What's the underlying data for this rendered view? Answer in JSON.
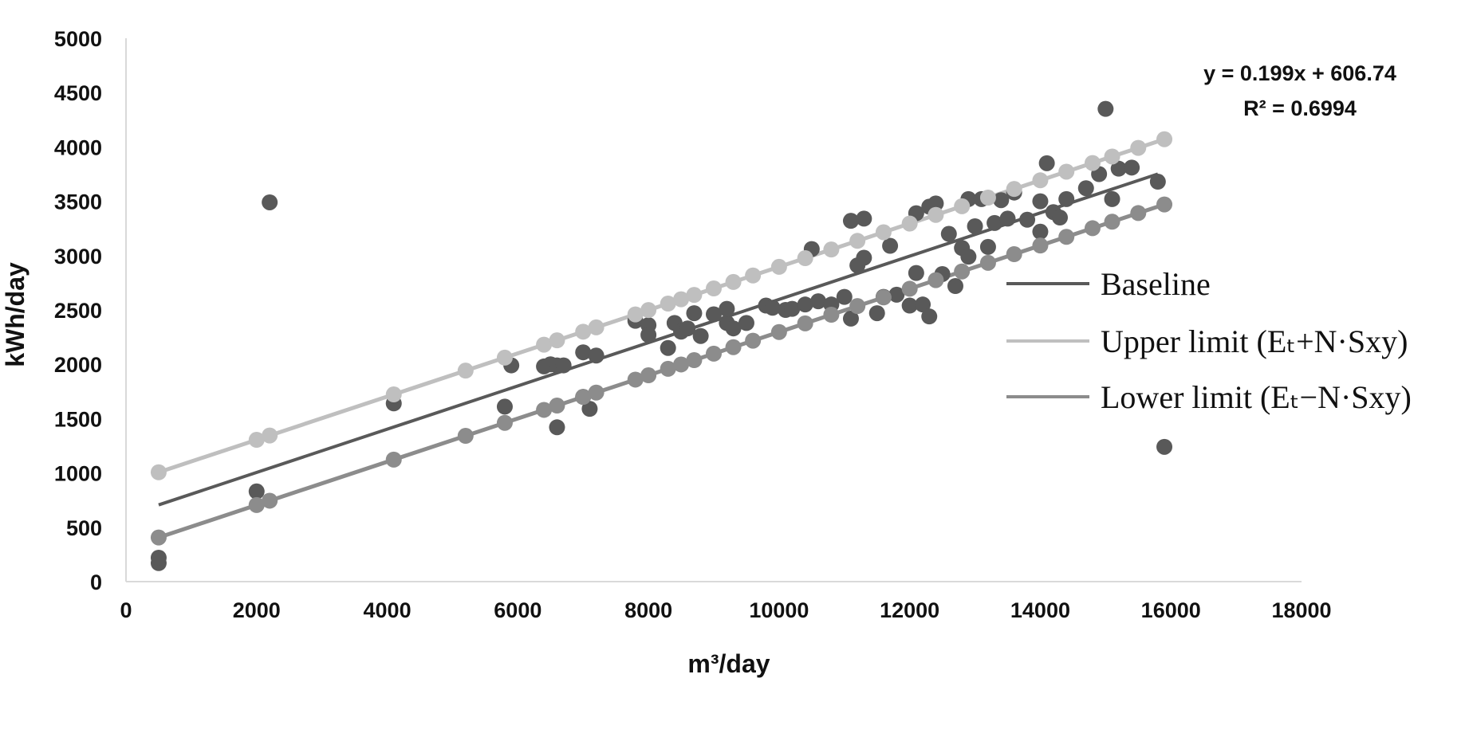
{
  "chart_data": {
    "type": "scatter",
    "xlabel": "m³/day",
    "ylabel": "kWh/day",
    "xlim": [
      0,
      18000
    ],
    "ylim": [
      0,
      5000
    ],
    "x_ticks": [
      "0",
      "2000",
      "4000",
      "6000",
      "8000",
      "10000",
      "12000",
      "14000",
      "16000",
      "18000"
    ],
    "y_ticks": [
      "0",
      "500",
      "1000",
      "1500",
      "2000",
      "2500",
      "3000",
      "3500",
      "4000",
      "4500",
      "5000"
    ],
    "trendline": {
      "equation": "y = 0.199x + 606.74",
      "r_squared": "R² = 0.6994",
      "slope": 0.199,
      "intercept": 606.74,
      "x_range": [
        500,
        15800
      ]
    },
    "upper_offset": 300,
    "lower_offset": -300,
    "legend_position": "right",
    "legend": [
      {
        "key": "baseline",
        "label": "Baseline",
        "color": "#595959"
      },
      {
        "key": "upper",
        "label": "Upper limit (Eₜ+N·Sxy)",
        "color": "#bfbfbf"
      },
      {
        "key": "lower",
        "label": "Lower limit (Eₜ−N·Sxy)",
        "color": "#8c8c8c"
      }
    ],
    "colors": {
      "observed": "#595959",
      "upper": "#bfbfbf",
      "lower": "#8c8c8c",
      "axis": "#d9d9d9"
    },
    "series": [
      {
        "key": "observed",
        "points": [
          [
            500,
            170
          ],
          [
            500,
            220
          ],
          [
            2000,
            830
          ],
          [
            2200,
            3490
          ],
          [
            4100,
            1640
          ],
          [
            5800,
            1610
          ],
          [
            5900,
            1990
          ],
          [
            6400,
            1980
          ],
          [
            6500,
            2000
          ],
          [
            6600,
            1990
          ],
          [
            6600,
            1420
          ],
          [
            6700,
            1990
          ],
          [
            7000,
            1700
          ],
          [
            7000,
            2110
          ],
          [
            7100,
            1590
          ],
          [
            7200,
            2080
          ],
          [
            7800,
            2400
          ],
          [
            8000,
            2360
          ],
          [
            8000,
            2270
          ],
          [
            8300,
            2150
          ],
          [
            8400,
            2380
          ],
          [
            8500,
            2300
          ],
          [
            8600,
            2330
          ],
          [
            8700,
            2470
          ],
          [
            8800,
            2260
          ],
          [
            9000,
            2460
          ],
          [
            9200,
            2380
          ],
          [
            9200,
            2510
          ],
          [
            9300,
            2330
          ],
          [
            9500,
            2380
          ],
          [
            9800,
            2540
          ],
          [
            9900,
            2520
          ],
          [
            10100,
            2500
          ],
          [
            10200,
            2510
          ],
          [
            10400,
            2550
          ],
          [
            10500,
            3060
          ],
          [
            10600,
            2580
          ],
          [
            10800,
            2550
          ],
          [
            11000,
            2620
          ],
          [
            11100,
            2420
          ],
          [
            11100,
            3320
          ],
          [
            11200,
            2910
          ],
          [
            11300,
            3340
          ],
          [
            11300,
            2980
          ],
          [
            11500,
            2470
          ],
          [
            11600,
            2620
          ],
          [
            11700,
            3090
          ],
          [
            11800,
            2640
          ],
          [
            12000,
            2540
          ],
          [
            12100,
            2840
          ],
          [
            12100,
            3390
          ],
          [
            12200,
            2550
          ],
          [
            12300,
            2440
          ],
          [
            12300,
            3450
          ],
          [
            12400,
            3480
          ],
          [
            12500,
            2830
          ],
          [
            12600,
            3200
          ],
          [
            12700,
            2720
          ],
          [
            12800,
            3070
          ],
          [
            12900,
            3520
          ],
          [
            12900,
            2990
          ],
          [
            13000,
            3270
          ],
          [
            13100,
            3520
          ],
          [
            13200,
            3080
          ],
          [
            13300,
            3300
          ],
          [
            13400,
            3510
          ],
          [
            13500,
            3340
          ],
          [
            13600,
            3580
          ],
          [
            13800,
            3330
          ],
          [
            14000,
            3500
          ],
          [
            14000,
            3220
          ],
          [
            14100,
            3850
          ],
          [
            14200,
            3400
          ],
          [
            14300,
            3350
          ],
          [
            14400,
            3520
          ],
          [
            14700,
            3620
          ],
          [
            14900,
            3750
          ],
          [
            15000,
            4350
          ],
          [
            15100,
            3520
          ],
          [
            15200,
            3800
          ],
          [
            15400,
            3810
          ],
          [
            15800,
            3680
          ],
          [
            15900,
            1240
          ]
        ]
      },
      {
        "key": "upper",
        "x": [
          500,
          2000,
          2200,
          4100,
          5200,
          5800,
          6400,
          6600,
          7000,
          7200,
          7800,
          8000,
          8300,
          8500,
          8700,
          9000,
          9300,
          9600,
          10000,
          10400,
          10800,
          11200,
          11600,
          12000,
          12400,
          12800,
          13200,
          13600,
          14000,
          14400,
          14800,
          15100,
          15500,
          15900
        ]
      },
      {
        "key": "lower",
        "x": [
          500,
          2000,
          2200,
          4100,
          5200,
          5800,
          6400,
          6600,
          7000,
          7200,
          7800,
          8000,
          8300,
          8500,
          8700,
          9000,
          9300,
          9600,
          10000,
          10400,
          10800,
          11200,
          11600,
          12000,
          12400,
          12800,
          13200,
          13600,
          14000,
          14400,
          14800,
          15100,
          15500,
          15900
        ]
      }
    ]
  }
}
